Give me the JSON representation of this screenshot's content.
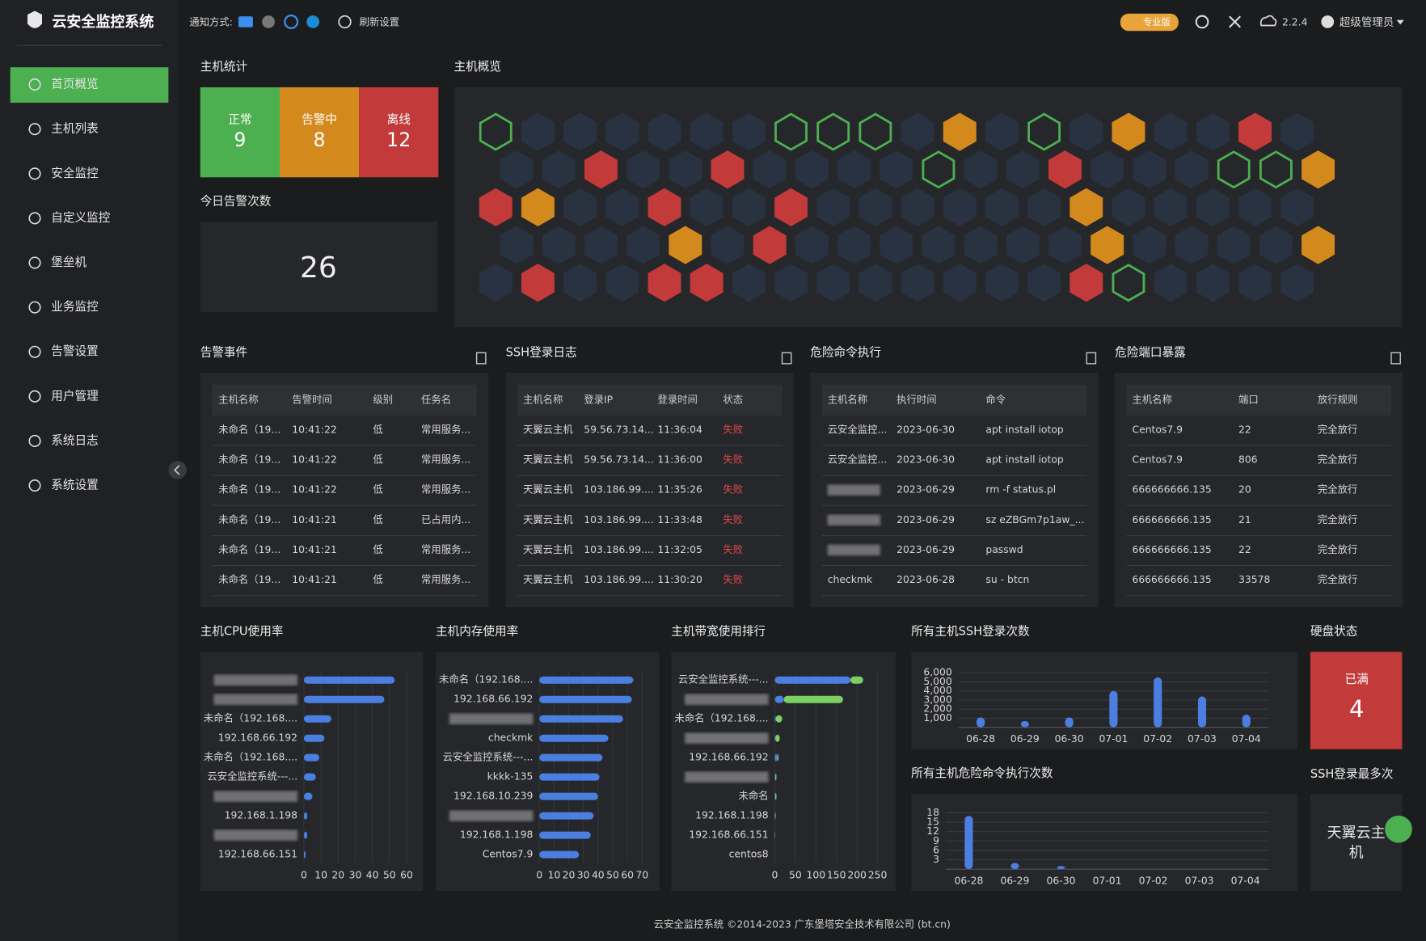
{
  "header": {
    "title": "云安全监控系统",
    "notify_label": "通知方式:",
    "refresh": "刷新设置",
    "edition": "专业版",
    "version": "2.2.4",
    "user": "超级管理员"
  },
  "sidebar": {
    "items": [
      "首页概览",
      "主机列表",
      "安全监控",
      "自定义监控",
      "堡垒机",
      "业务监控",
      "告警设置",
      "用户管理",
      "系统日志",
      "系统设置"
    ]
  },
  "host_stats": {
    "title": "主机统计",
    "cells": [
      {
        "label": "正常",
        "value": 9,
        "color": "#4caf50"
      },
      {
        "label": "告警中",
        "value": 8,
        "color": "#d4891c"
      },
      {
        "label": "离线",
        "value": 12,
        "color": "#c23a3a"
      }
    ]
  },
  "today_alerts": {
    "title": "今日告警次数",
    "value": 26
  },
  "host_overview": {
    "title": "主机概览",
    "colors": {
      "n": "#4caf50",
      "w": "#d4891c",
      "o": "#c23a3a"
    },
    "rows": [
      "n......nnn.w.n.w..o.",
      "..o..o....n..o...nnw",
      "ow..o..o......w.....",
      "....w.o.......w....w",
      ".o..oo........on...."
    ]
  },
  "tables": [
    {
      "title": "告警事件",
      "columns": [
        "主机名称",
        "告警时间",
        "级别",
        "任务名"
      ],
      "rows": [
        [
          "未命名（19...",
          "10:41:22",
          "低",
          "常用服务..."
        ],
        [
          "未命名（19...",
          "10:41:22",
          "低",
          "常用服务..."
        ],
        [
          "未命名（19...",
          "10:41:22",
          "低",
          "常用服务..."
        ],
        [
          "未命名（19...",
          "10:41:21",
          "低",
          "已占用内..."
        ],
        [
          "未命名（19...",
          "10:41:21",
          "低",
          "常用服务..."
        ],
        [
          "未命名（19...",
          "10:41:21",
          "低",
          "常用服务..."
        ]
      ]
    },
    {
      "title": "SSH登录日志",
      "columns": [
        "主机名称",
        "登录IP",
        "登录时间",
        "状态"
      ],
      "rows": [
        [
          "天翼云主机",
          "59.56.73.14...",
          "11:36:04",
          "失败"
        ],
        [
          "天翼云主机",
          "59.56.73.14...",
          "11:36:00",
          "失败"
        ],
        [
          "天翼云主机",
          "103.186.99....",
          "11:35:26",
          "失败"
        ],
        [
          "天翼云主机",
          "103.186.99....",
          "11:33:48",
          "失败"
        ],
        [
          "天翼云主机",
          "103.186.99....",
          "11:32:05",
          "失败"
        ],
        [
          "天翼云主机",
          "103.186.99....",
          "11:30:20",
          "失败"
        ]
      ]
    },
    {
      "title": "危险命令执行",
      "columns": [
        "主机名称",
        "执行时间",
        "命令"
      ],
      "rows": [
        [
          "云安全监控...",
          "2023-06-30",
          "apt install iotop"
        ],
        [
          "云安全监控...",
          "2023-06-30",
          "apt install iotop"
        ],
        [
          null,
          "2023-06-29",
          "rm -f status.pl"
        ],
        [
          null,
          "2023-06-29",
          "sz eZBGm7p1aw_..."
        ],
        [
          null,
          "2023-06-29",
          "passwd"
        ],
        [
          "checkmk",
          "2023-06-28",
          "su - btcn"
        ]
      ]
    },
    {
      "title": "危险端口暴露",
      "columns": [
        "主机名称",
        "端口",
        "放行规则"
      ],
      "rows": [
        [
          "Centos7.9",
          22,
          "完全放行"
        ],
        [
          "Centos7.9",
          806,
          "完全放行"
        ],
        [
          "666666666.135",
          20,
          "完全放行"
        ],
        [
          "666666666.135",
          21,
          "完全放行"
        ],
        [
          "666666666.135",
          22,
          "完全放行"
        ],
        [
          "666666666.135",
          33578,
          "完全放行"
        ]
      ]
    }
  ],
  "chart_data": [
    {
      "type": "bar",
      "horizontal": true,
      "title": "主机CPU使用率",
      "categories": [
        null,
        null,
        "未命名（192.168....",
        "192.168.66.192",
        "未命名（192.168....",
        "云安全监控系统---...",
        null,
        "192.168.1.198",
        null,
        "192.168.66.151"
      ],
      "values": [
        53,
        47,
        16,
        12,
        9,
        7,
        5,
        2,
        2,
        1
      ],
      "color": "#4a7fe0",
      "xlim": [
        0,
        60
      ],
      "xticks": [
        0,
        10,
        20,
        30,
        40,
        50,
        60
      ],
      "grid": true
    },
    {
      "type": "bar",
      "horizontal": true,
      "title": "主机内存使用率",
      "categories": [
        "未命名（192.168....",
        "192.168.66.192",
        null,
        "checkmk",
        "云安全监控系统---...",
        "kkkk-135",
        "192.168.10.239",
        null,
        "192.168.1.198",
        "Centos7.9"
      ],
      "values": [
        64,
        63,
        57,
        47,
        43,
        41,
        40,
        37,
        35,
        27
      ],
      "color": "#4a7fe0",
      "xlim": [
        0,
        70
      ],
      "xticks": [
        0,
        10,
        20,
        30,
        40,
        50,
        60,
        70
      ],
      "grid": true
    },
    {
      "type": "bar",
      "horizontal": true,
      "stacked": true,
      "title": "主机带宽使用排行",
      "categories": [
        "云安全监控系统---...",
        null,
        "未命名（192.168....",
        null,
        "192.168.66.192",
        null,
        "未命名",
        "192.168.1.198",
        "192.168.66.151",
        "centos8"
      ],
      "series": [
        {
          "color": "#4a7fe0",
          "values": [
            184,
            22,
            2,
            1,
            6,
            1,
            1,
            0,
            0,
            0
          ]
        },
        {
          "color": "#7ccf61",
          "values": [
            31,
            144,
            16,
            11,
            3,
            3,
            3,
            2,
            1,
            0
          ]
        }
      ],
      "xlim": [
        0,
        250
      ],
      "xticks": [
        0,
        50,
        100,
        150,
        200,
        250
      ],
      "grid": true
    },
    {
      "type": "bar",
      "title": "所有主机SSH登录次数",
      "categories": [
        "06-28",
        "06-29",
        "06-30",
        "07-01",
        "07-02",
        "07-03",
        "07-04"
      ],
      "values": [
        1100,
        700,
        1100,
        4000,
        5500,
        3400,
        1400
      ],
      "color": "#4a7fe0",
      "ylim": [
        0,
        6000
      ],
      "yticks": [
        {
          "value": 1000,
          "label": "1,000"
        },
        {
          "value": 2000,
          "label": "2,000"
        },
        {
          "value": 3000,
          "label": "3,000"
        },
        {
          "value": 4000,
          "label": "4,000"
        },
        {
          "value": 5000,
          "label": "5,000"
        },
        {
          "value": 6000,
          "label": "6,000"
        }
      ],
      "grid": true
    },
    {
      "type": "bar",
      "title": "所有主机危险命令执行次数",
      "categories": [
        "06-28",
        "06-29",
        "06-30",
        "07-01",
        "07-02",
        "07-03",
        "07-04"
      ],
      "values": [
        17,
        2,
        1,
        0,
        0,
        0,
        0
      ],
      "color": "#4a7fe0",
      "ylim": [
        0,
        18
      ],
      "yticks": [
        3,
        6,
        9,
        12,
        15,
        18
      ],
      "grid": true
    }
  ],
  "disk": {
    "title": "硬盘状态",
    "label": "已满",
    "value": 4
  },
  "ssh_top": {
    "title": "SSH登录最多次",
    "value": "天翼云主机"
  },
  "footer": "云安全监控系统 ©2014-2023 广东堡塔安全技术有限公司 (bt.cn)"
}
